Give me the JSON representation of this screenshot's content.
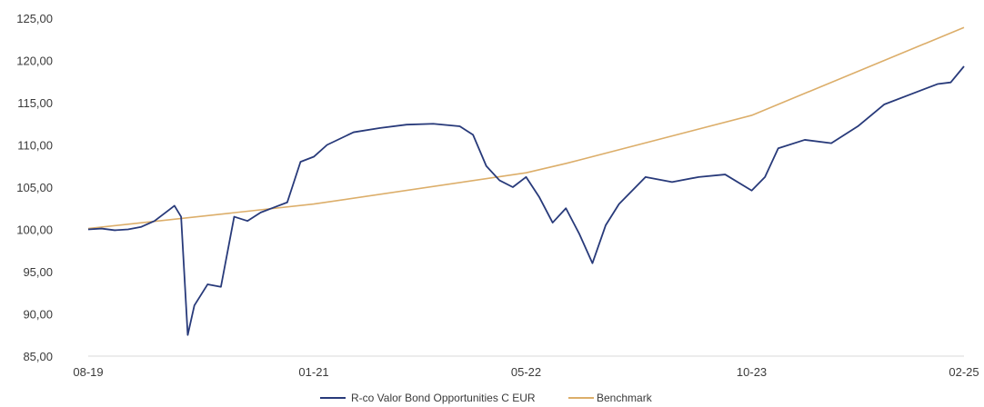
{
  "chart_data": {
    "type": "line",
    "title": "",
    "xlabel": "",
    "ylabel": "",
    "ylim": [
      85,
      125
    ],
    "yticks": [
      "85,00",
      "90,00",
      "95,00",
      "100,00",
      "105,00",
      "110,00",
      "115,00",
      "120,00",
      "125,00"
    ],
    "xticks": [
      "08-19",
      "01-21",
      "05-22",
      "10-23",
      "02-25"
    ],
    "grid": false,
    "legend_placement": "bottom-center",
    "series": [
      {
        "name": "R-co Valor Bond Opportunities C EUR",
        "color": "#283a7a",
        "points": [
          [
            "08-19",
            100.0
          ],
          [
            "09-19",
            100.1
          ],
          [
            "10-19",
            99.9
          ],
          [
            "11-19",
            100.0
          ],
          [
            "12-19",
            100.3
          ],
          [
            "01-20",
            101.0
          ],
          [
            "02-20",
            102.2
          ],
          [
            "02-20b",
            102.8
          ],
          [
            "03-20",
            101.5
          ],
          [
            "03-20b",
            87.5
          ],
          [
            "04-20",
            91.0
          ],
          [
            "05-20",
            93.5
          ],
          [
            "06-20",
            93.2
          ],
          [
            "07-20",
            101.5
          ],
          [
            "08-20",
            101.0
          ],
          [
            "09-20",
            102.0
          ],
          [
            "10-20",
            102.6
          ],
          [
            "11-20",
            103.2
          ],
          [
            "12-20",
            108.0
          ],
          [
            "01-21",
            108.6
          ],
          [
            "02-21",
            110.0
          ],
          [
            "04-21",
            111.5
          ],
          [
            "06-21",
            112.0
          ],
          [
            "08-21",
            112.4
          ],
          [
            "10-21",
            112.5
          ],
          [
            "12-21",
            112.2
          ],
          [
            "01-22",
            111.2
          ],
          [
            "02-22",
            107.5
          ],
          [
            "03-22",
            105.8
          ],
          [
            "04-22",
            105.0
          ],
          [
            "05-22",
            106.2
          ],
          [
            "06-22",
            103.8
          ],
          [
            "07-22",
            100.8
          ],
          [
            "08-22",
            102.5
          ],
          [
            "09-22",
            99.5
          ],
          [
            "10-22",
            96.0
          ],
          [
            "11-22",
            100.5
          ],
          [
            "12-22",
            103.0
          ],
          [
            "02-23",
            106.2
          ],
          [
            "04-23",
            105.6
          ],
          [
            "06-23",
            106.2
          ],
          [
            "08-23",
            106.5
          ],
          [
            "10-23",
            104.6
          ],
          [
            "11-23",
            106.2
          ],
          [
            "12-23",
            109.6
          ],
          [
            "02-24",
            110.6
          ],
          [
            "04-24",
            110.2
          ],
          [
            "06-24",
            112.2
          ],
          [
            "08-24",
            114.8
          ],
          [
            "10-24",
            116.0
          ],
          [
            "12-24",
            117.2
          ],
          [
            "01-25",
            117.4
          ],
          [
            "02-25",
            119.3
          ]
        ]
      },
      {
        "name": "Benchmark",
        "color": "#dcae6a",
        "points": [
          [
            "08-19",
            100.1
          ],
          [
            "01-21",
            103.0
          ],
          [
            "05-22",
            106.7
          ],
          [
            "08-22",
            107.8
          ],
          [
            "10-23",
            113.5
          ],
          [
            "02-25",
            123.9
          ]
        ]
      }
    ]
  }
}
